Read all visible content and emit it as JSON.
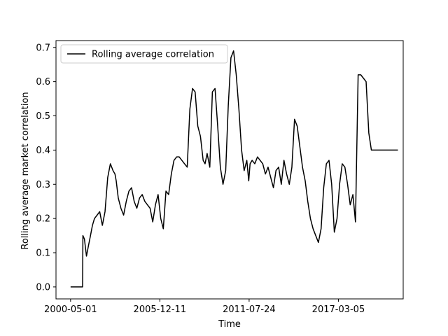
{
  "chart_data": {
    "type": "line",
    "title": "",
    "xlabel": "Time",
    "ylabel": "Rolling average market correlation",
    "legend": {
      "position": "top-left",
      "entries": [
        "Rolling average correlation"
      ]
    },
    "grid": false,
    "x_tick_labels": [
      "2000-05-01",
      "2005-12-11",
      "2011-07-24",
      "2017-03-05"
    ],
    "y_tick_labels": [
      "0.0",
      "0.1",
      "0.2",
      "0.3",
      "0.4",
      "0.5",
      "0.6",
      "0.7"
    ],
    "x_ticks": [
      "2000-05-01",
      "2005-12-11",
      "2011-07-24",
      "2017-03-05"
    ],
    "y_ticks": [
      0.0,
      0.1,
      0.2,
      0.3,
      0.4,
      0.5,
      0.6,
      0.7
    ],
    "xlim": [
      "1999-06-01",
      "2021-04-01"
    ],
    "ylim": [
      -0.035,
      0.72
    ],
    "series_color": "#000000",
    "series": [
      {
        "name": "Rolling average correlation",
        "x": [
          "2000-05-01",
          "2001-02-01",
          "2001-02-08",
          "2001-03-15",
          "2001-05-01",
          "2001-06-15",
          "2001-08-01",
          "2001-09-15",
          "2001-11-01",
          "2002-01-01",
          "2002-03-01",
          "2002-05-01",
          "2002-07-01",
          "2002-09-01",
          "2002-11-01",
          "2003-01-01",
          "2003-02-15",
          "2003-03-15",
          "2003-05-01",
          "2003-07-01",
          "2003-09-01",
          "2003-11-01",
          "2004-01-01",
          "2004-03-01",
          "2004-05-01",
          "2004-07-01",
          "2004-09-01",
          "2004-11-01",
          "2005-01-01",
          "2005-03-01",
          "2005-05-01",
          "2005-07-01",
          "2005-09-01",
          "2005-11-01",
          "2006-01-01",
          "2006-03-01",
          "2006-05-01",
          "2006-07-01",
          "2006-09-01",
          "2006-11-01",
          "2007-01-01",
          "2007-03-01",
          "2007-05-01",
          "2007-07-01",
          "2007-09-01",
          "2007-11-01",
          "2008-01-01",
          "2008-03-01",
          "2008-05-01",
          "2008-07-01",
          "2008-09-01",
          "2008-10-15",
          "2008-12-01",
          "2009-02-01",
          "2009-04-01",
          "2009-06-01",
          "2009-08-01",
          "2009-10-01",
          "2009-12-01",
          "2010-02-01",
          "2010-04-01",
          "2010-06-01",
          "2010-08-01",
          "2010-10-01",
          "2010-12-01",
          "2011-02-01",
          "2011-04-01",
          "2011-06-01",
          "2011-07-15",
          "2011-08-15",
          "2011-10-01",
          "2011-12-01",
          "2012-02-01",
          "2012-04-01",
          "2012-06-01",
          "2012-08-01",
          "2012-10-01",
          "2012-12-01",
          "2013-02-01",
          "2013-04-01",
          "2013-06-01",
          "2013-08-01",
          "2013-10-01",
          "2013-12-01",
          "2014-02-01",
          "2014-04-01",
          "2014-06-01",
          "2014-08-01",
          "2014-10-01",
          "2014-12-01",
          "2015-02-01",
          "2015-04-01",
          "2015-06-01",
          "2015-08-01",
          "2015-10-01",
          "2015-12-01",
          "2016-02-01",
          "2016-04-01",
          "2016-06-01",
          "2016-08-01",
          "2016-10-01",
          "2016-12-01",
          "2017-02-01",
          "2017-04-01",
          "2017-06-01",
          "2017-08-01",
          "2017-10-01",
          "2017-12-01",
          "2018-02-01",
          "2018-04-01",
          "2018-06-01",
          "2018-08-01",
          "2018-10-01",
          "2018-12-01",
          "2019-02-01",
          "2019-04-01",
          "2019-06-01",
          "2019-08-01",
          "2019-10-01",
          "2019-12-01",
          "2020-02-01",
          "2020-03-01",
          "2020-04-01",
          "2020-06-01",
          "2020-08-01",
          "2020-10-01",
          "2020-12-01"
        ],
        "y": [
          0.0,
          0.0,
          0.15,
          0.14,
          0.09,
          0.12,
          0.15,
          0.18,
          0.2,
          0.21,
          0.22,
          0.18,
          0.22,
          0.32,
          0.36,
          0.34,
          0.33,
          0.31,
          0.26,
          0.23,
          0.21,
          0.25,
          0.28,
          0.29,
          0.25,
          0.23,
          0.26,
          0.27,
          0.25,
          0.24,
          0.23,
          0.19,
          0.24,
          0.27,
          0.2,
          0.17,
          0.28,
          0.27,
          0.33,
          0.37,
          0.38,
          0.38,
          0.37,
          0.36,
          0.35,
          0.52,
          0.58,
          0.57,
          0.47,
          0.44,
          0.37,
          0.36,
          0.39,
          0.35,
          0.57,
          0.58,
          0.47,
          0.35,
          0.3,
          0.34,
          0.53,
          0.67,
          0.69,
          0.62,
          0.52,
          0.4,
          0.34,
          0.37,
          0.31,
          0.36,
          0.37,
          0.36,
          0.38,
          0.37,
          0.36,
          0.33,
          0.35,
          0.32,
          0.29,
          0.34,
          0.35,
          0.3,
          0.37,
          0.33,
          0.3,
          0.35,
          0.49,
          0.47,
          0.41,
          0.35,
          0.31,
          0.25,
          0.2,
          0.17,
          0.15,
          0.13,
          0.17,
          0.29,
          0.36,
          0.37,
          0.3,
          0.16,
          0.2,
          0.3,
          0.36,
          0.35,
          0.3,
          0.24,
          0.27,
          0.19,
          0.62,
          0.62,
          0.61,
          0.6,
          0.45,
          0.4,
          0.4,
          0.4,
          0.4,
          0.4,
          0.4,
          0.4,
          0.4,
          0.4,
          0.4,
          0.4,
          0.4
        ]
      }
    ]
  }
}
